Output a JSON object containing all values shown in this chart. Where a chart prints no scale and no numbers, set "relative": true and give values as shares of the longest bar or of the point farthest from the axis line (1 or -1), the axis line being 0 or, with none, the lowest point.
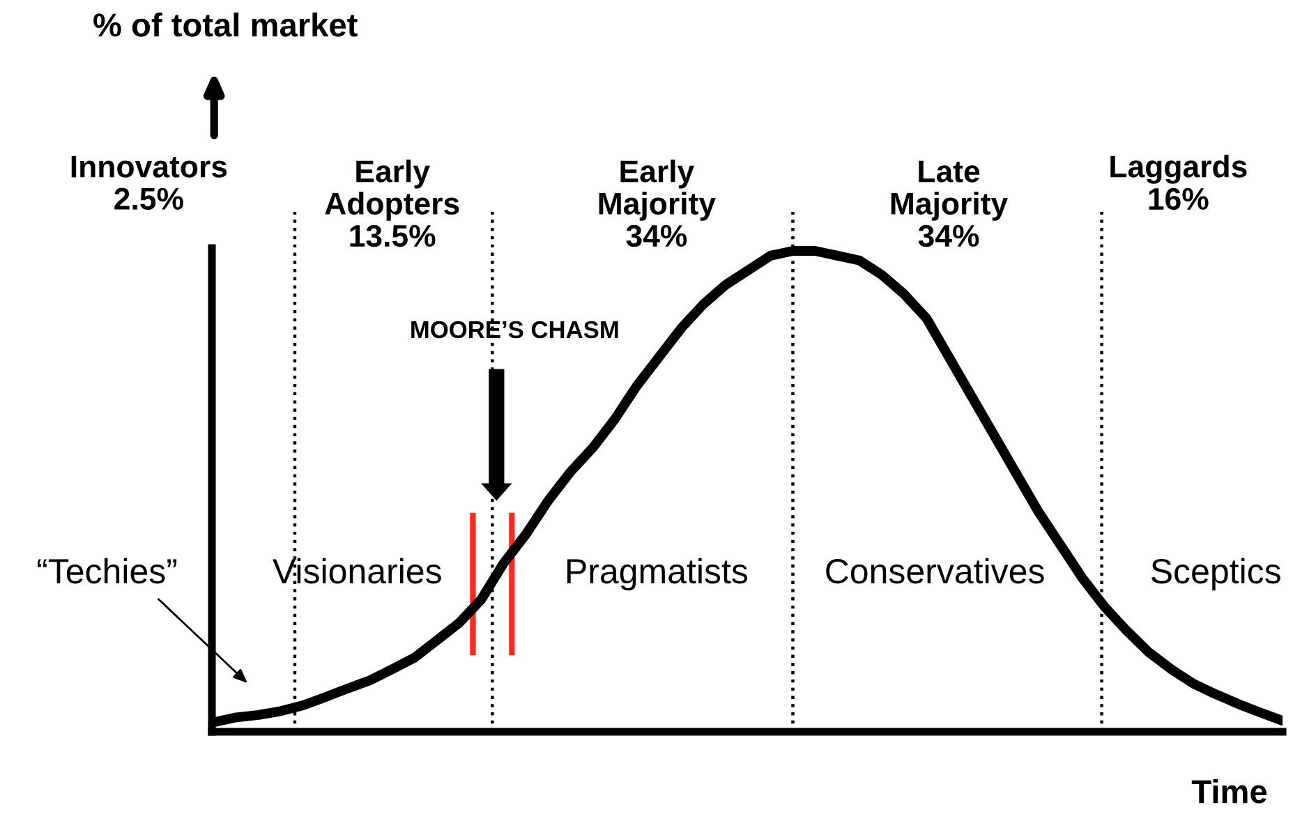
{
  "chart_data": {
    "type": "line",
    "relative": true,
    "marker": "none",
    "line_style": "solid",
    "xlabel": "Time",
    "categories": [
      null,
      null,
      null,
      null,
      null,
      null,
      null,
      null,
      null,
      null,
      null,
      null,
      null,
      null,
      null,
      null,
      null,
      null,
      null,
      null,
      null,
      null,
      null,
      null,
      null,
      null,
      null,
      null,
      null,
      null,
      null,
      null,
      null,
      null,
      null,
      null,
      null,
      null,
      null,
      null,
      null,
      null,
      null,
      null,
      null,
      null,
      null,
      null,
      null
    ],
    "series": [
      {
        "color": "#000000",
        "values": [
          0.02,
          0.03,
          0.035,
          0.043,
          0.055,
          0.072,
          0.09,
          0.107,
          0.13,
          0.154,
          0.19,
          0.226,
          0.275,
          0.35,
          0.41,
          0.48,
          0.54,
          0.59,
          0.65,
          0.72,
          0.78,
          0.84,
          0.89,
          0.93,
          0.96,
          0.99,
          1.0,
          1.0,
          0.99,
          0.98,
          0.95,
          0.91,
          0.86,
          0.78,
          0.7,
          0.62,
          0.54,
          0.46,
          0.39,
          0.32,
          0.26,
          0.21,
          0.165,
          0.13,
          0.1,
          0.078,
          0.058,
          0.04,
          0.023
        ]
      }
    ],
    "annotations": [
      "% of total market",
      "Innovators\n2.5%",
      "Early\nAdopters\n13.5%",
      "Early\nMajority\n34%",
      "Late\nMajority\n34%",
      "Laggards\n16%",
      "MOORE’S CHASM",
      "Visionaries",
      "Pragmatists",
      "Conservatives",
      "Sceptics",
      "“Techies”"
    ]
  }
}
